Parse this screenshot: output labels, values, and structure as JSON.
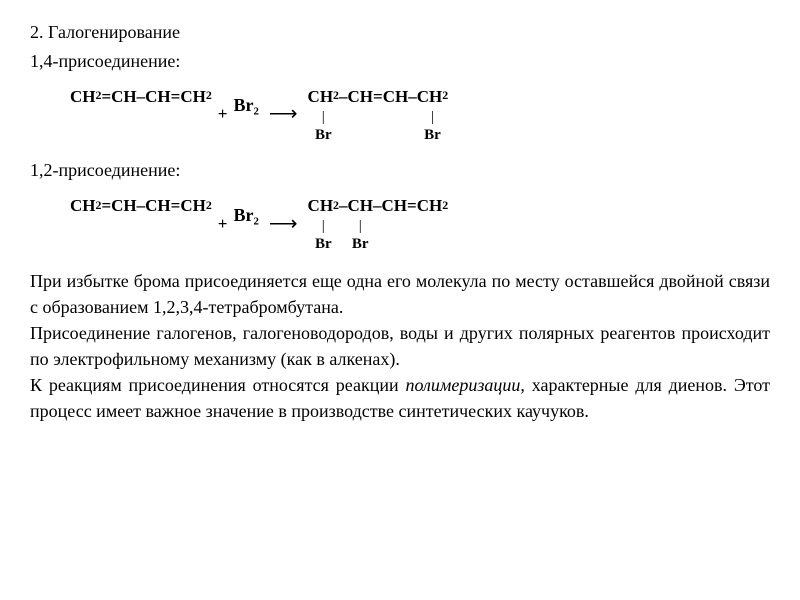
{
  "section": {
    "title": "2. Галогенирование",
    "addition14_label": "1,4-присоединение:",
    "addition12_label": "1,2-присоединение:"
  },
  "equation1": {
    "reactant": {
      "units": [
        {
          "main": "CH₂",
          "sub": ""
        },
        {
          "main": "=",
          "sub": ""
        },
        {
          "main": "CH",
          "sub": ""
        },
        {
          "main": "–",
          "sub": ""
        },
        {
          "main": "CH",
          "sub": ""
        },
        {
          "main": "=",
          "sub": ""
        },
        {
          "main": "CH₂",
          "sub": ""
        }
      ]
    },
    "plus": "+",
    "reagent": "Br₂",
    "arrow": "⟶",
    "product": {
      "units": [
        {
          "main": "CH₂",
          "sub": "Br"
        },
        {
          "main": "–",
          "sub": ""
        },
        {
          "main": "CH",
          "sub": ""
        },
        {
          "main": "=",
          "sub": ""
        },
        {
          "main": "CH",
          "sub": ""
        },
        {
          "main": "–",
          "sub": ""
        },
        {
          "main": "CH₂",
          "sub": "Br"
        }
      ]
    }
  },
  "equation2": {
    "reactant": {
      "units": [
        {
          "main": "CH₂",
          "sub": ""
        },
        {
          "main": "=",
          "sub": ""
        },
        {
          "main": "CH",
          "sub": ""
        },
        {
          "main": "–",
          "sub": ""
        },
        {
          "main": "CH",
          "sub": ""
        },
        {
          "main": "=",
          "sub": ""
        },
        {
          "main": "CH₂",
          "sub": ""
        }
      ]
    },
    "plus": "+",
    "reagent": "Br₂",
    "arrow": "⟶",
    "product": {
      "units": [
        {
          "main": "CH₂",
          "sub": "Br"
        },
        {
          "main": "–",
          "sub": ""
        },
        {
          "main": "CH",
          "sub": "Br"
        },
        {
          "main": "–",
          "sub": ""
        },
        {
          "main": "CH",
          "sub": ""
        },
        {
          "main": "=",
          "sub": ""
        },
        {
          "main": "CH₂",
          "sub": ""
        }
      ]
    }
  },
  "body": {
    "p1": "При избытке брома присоединяется еще одна его молекула по месту оставшейся двойной связи с образованием 1,2,3,4-тетрабромбутана.",
    "p2_pre": "Присоединение галогенов, галогеноводородов, воды и других полярных реагентов происходит по электрофильному механизму (как в алкенах).",
    "p3_pre": "К реакциям присоединения относятся реакции",
    "p3_italic": " полимеризации",
    "p3_post": ", характерные для диенов. Этот процесс имеет важное значение в производстве синтетических каучуков."
  },
  "style": {
    "text_color": "#000000",
    "background": "#ffffff",
    "body_fontsize": 18,
    "formula_fontsize": 17
  }
}
